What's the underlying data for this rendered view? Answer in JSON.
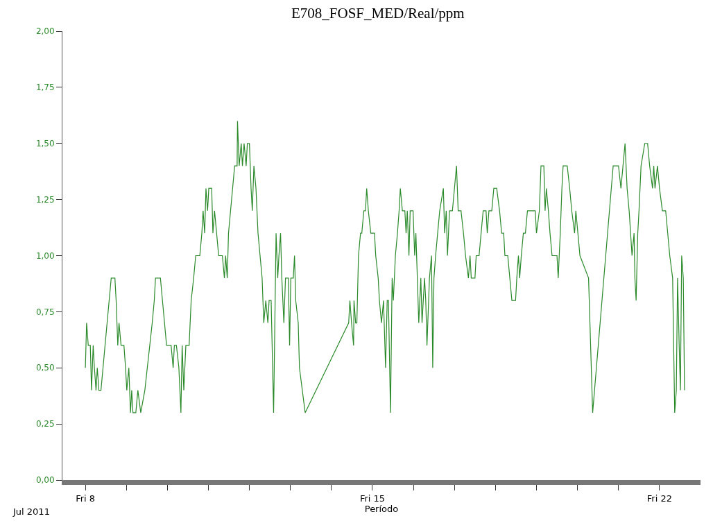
{
  "chart_data": {
    "type": "line",
    "title": "E708_FOSF_MED/Real/ppm",
    "xlabel": "Período",
    "annotations": [
      "Jul 2011"
    ],
    "x": [
      "2011-07-08T00:00",
      "2011-07-08T00:43",
      "2011-07-08T01:41",
      "2011-07-08T02:53",
      "2011-07-08T03:36",
      "2011-07-08T04:34",
      "2011-07-08T05:17",
      "2011-07-08T06:14",
      "2011-07-08T06:58",
      "2011-07-08T07:55",
      "2011-07-08T09:07",
      "2011-07-08T10:19",
      "2011-07-08T11:31",
      "2011-07-08T12:43",
      "2011-07-08T13:55",
      "2011-07-08T15:07",
      "2011-07-08T17:17",
      "2011-07-08T18:00",
      "2011-07-08T18:58",
      "2011-07-08T19:41",
      "2011-07-08T20:53",
      "2011-07-08T22:34",
      "2011-07-08T23:31",
      "2011-07-09T00:14",
      "2011-07-09T01:26",
      "2011-07-09T02:24",
      "2011-07-09T03:07",
      "2011-07-09T03:50",
      "2011-07-09T05:31",
      "2011-07-09T06:43",
      "2011-07-09T08:24",
      "2011-07-09T10:48",
      "2011-07-09T12:14",
      "2011-07-09T13:41",
      "2011-07-09T15:07",
      "2011-07-09T16:19",
      "2011-07-09T17:02",
      "2011-07-09T19:55",
      "2011-07-09T21:07",
      "2011-07-09T22:19",
      "2011-07-09T23:31",
      "2011-07-10T02:10",
      "2011-07-10T03:22",
      "2011-07-10T04:05",
      "2011-07-10T05:17",
      "2011-07-10T06:43",
      "2011-07-10T07:55",
      "2011-07-10T08:38",
      "2011-07-10T09:36",
      "2011-07-10T10:48",
      "2011-07-10T12:43",
      "2011-07-10T13:55",
      "2011-07-10T15:22",
      "2011-07-10T16:34",
      "2011-07-10T18:58",
      "2011-07-10T20:10",
      "2011-07-10T20:53",
      "2011-07-10T21:50",
      "2011-07-10T22:34",
      "2011-07-10T23:31",
      "2011-07-11T00:14",
      "2011-07-11T01:55",
      "2011-07-11T02:38",
      "2011-07-11T03:36",
      "2011-07-11T04:48",
      "2011-07-11T06:00",
      "2011-07-11T08:10",
      "2011-07-11T09:22",
      "2011-07-11T10:05",
      "2011-07-11T11:02",
      "2011-07-11T11:46",
      "2011-07-11T12:58",
      "2011-07-11T14:10",
      "2011-07-11T15:22",
      "2011-07-11T16:48",
      "2011-07-11T17:02",
      "2011-07-11T18:00",
      "2011-07-11T19:12",
      "2011-07-11T19:55",
      "2011-07-11T20:53",
      "2011-07-11T22:05",
      "2011-07-11T22:48",
      "2011-07-12T00:00",
      "2011-07-12T00:58",
      "2011-07-12T01:41",
      "2011-07-12T02:38",
      "2011-07-12T03:50",
      "2011-07-12T05:02",
      "2011-07-12T06:14",
      "2011-07-12T07:26",
      "2011-07-12T08:24",
      "2011-07-12T09:36",
      "2011-07-12T10:48",
      "2011-07-12T11:31",
      "2011-07-12T12:43",
      "2011-07-12T14:10",
      "2011-07-12T14:53",
      "2011-07-12T15:36",
      "2011-07-12T16:34",
      "2011-07-12T17:17",
      "2011-07-12T18:14",
      "2011-07-12T18:58",
      "2011-07-12T20:10",
      "2011-07-12T21:07",
      "2011-07-12T22:48",
      "2011-07-12T23:31",
      "2011-07-13T00:14",
      "2011-07-13T01:41",
      "2011-07-13T02:24",
      "2011-07-13T03:07",
      "2011-07-13T04:34",
      "2011-07-13T05:17",
      "2011-07-13T08:38",
      "2011-07-14T10:05",
      "2011-07-14T10:48",
      "2011-07-14T11:46",
      "2011-07-14T12:58",
      "2011-07-14T13:12",
      "2011-07-14T14:10",
      "2011-07-14T14:53",
      "2011-07-14T15:50",
      "2011-07-14T17:02",
      "2011-07-14T17:46",
      "2011-07-14T18:58",
      "2011-07-14T19:55",
      "2011-07-14T20:38",
      "2011-07-14T21:36",
      "2011-07-14T23:02",
      "2011-07-15T01:12",
      "2011-07-15T01:55",
      "2011-07-15T03:22",
      "2011-07-15T04:05",
      "2011-07-15T05:17",
      "2011-07-15T06:29",
      "2011-07-15T07:41",
      "2011-07-15T08:38",
      "2011-07-15T09:22",
      "2011-07-15T10:34",
      "2011-07-15T11:31",
      "2011-07-15T12:14",
      "2011-07-15T13:26",
      "2011-07-15T14:38",
      "2011-07-15T15:36",
      "2011-07-15T16:19",
      "2011-07-15T17:31",
      "2011-07-15T18:58",
      "2011-07-15T19:41",
      "2011-07-15T20:24",
      "2011-07-15T21:22",
      "2011-07-15T22:05",
      "2011-07-15T23:46",
      "2011-07-16T00:43",
      "2011-07-16T01:26",
      "2011-07-16T03:07",
      "2011-07-16T04:19",
      "2011-07-16T05:02",
      "2011-07-16T06:29",
      "2011-07-16T07:12",
      "2011-07-16T07:55",
      "2011-07-16T09:22",
      "2011-07-16T10:34",
      "2011-07-16T11:17",
      "2011-07-16T12:00",
      "2011-07-16T12:58",
      "2011-07-16T14:10",
      "2011-07-16T15:22",
      "2011-07-16T17:31",
      "2011-07-16T18:14",
      "2011-07-16T19:12",
      "2011-07-16T19:55",
      "2011-07-16T21:07",
      "2011-07-16T22:48",
      "2011-07-17T00:00",
      "2011-07-17T01:12",
      "2011-07-17T02:10",
      "2011-07-17T03:50",
      "2011-07-17T05:17",
      "2011-07-17T06:29",
      "2011-07-17T08:10",
      "2011-07-17T09:07",
      "2011-07-17T09:50",
      "2011-07-17T12:00",
      "2011-07-17T12:43",
      "2011-07-17T14:24",
      "2011-07-17T15:36",
      "2011-07-17T16:48",
      "2011-07-17T18:29",
      "2011-07-17T19:12",
      "2011-07-17T20:10",
      "2011-07-17T21:50",
      "2011-07-17T23:02",
      "2011-07-18T00:43",
      "2011-07-18T02:24",
      "2011-07-18T03:36",
      "2011-07-18T04:48",
      "2011-07-18T05:31",
      "2011-07-18T07:12",
      "2011-07-18T08:24",
      "2011-07-18T09:36",
      "2011-07-18T11:46",
      "2011-07-18T12:29",
      "2011-07-18T13:26",
      "2011-07-18T14:10",
      "2011-07-18T15:07",
      "2011-07-18T16:19",
      "2011-07-18T17:31",
      "2011-07-18T18:43",
      "2011-07-18T22:19",
      "2011-07-18T23:17",
      "2011-07-19T00:00",
      "2011-07-19T01:41",
      "2011-07-19T02:38",
      "2011-07-19T04:19",
      "2011-07-19T05:02",
      "2011-07-19T05:46",
      "2011-07-19T06:58",
      "2011-07-19T07:55",
      "2011-07-19T09:07",
      "2011-07-19T12:00",
      "2011-07-19T12:43",
      "2011-07-19T13:55",
      "2011-07-19T14:53",
      "2011-07-19T15:36",
      "2011-07-19T18:00",
      "2011-07-19T19:26",
      "2011-07-19T20:38",
      "2011-07-19T22:19",
      "2011-07-19T23:02",
      "2011-07-20T00:14",
      "2011-07-20T01:26",
      "2011-07-20T06:29",
      "2011-07-20T08:53",
      "2011-07-20T20:53",
      "2011-07-21T00:00",
      "2011-07-21T01:26",
      "2011-07-21T02:38",
      "2011-07-21T03:50",
      "2011-07-21T05:02",
      "2011-07-21T06:14",
      "2011-07-21T07:55",
      "2011-07-21T09:07",
      "2011-07-21T09:36",
      "2011-07-21T10:19",
      "2011-07-21T11:17",
      "2011-07-21T12:00",
      "2011-07-21T13:12",
      "2011-07-21T15:22",
      "2011-07-21T17:02",
      "2011-07-21T18:14",
      "2011-07-21T19:55",
      "2011-07-21T20:38",
      "2011-07-21T21:22",
      "2011-07-21T22:48",
      "2011-07-22T00:00",
      "2011-07-22T01:41",
      "2011-07-22T03:36",
      "2011-07-22T06:00",
      "2011-07-22T07:41",
      "2011-07-22T08:53",
      "2011-07-22T09:50",
      "2011-07-22T10:34",
      "2011-07-22T11:31",
      "2011-07-22T12:14",
      "2011-07-22T12:58",
      "2011-07-22T13:55",
      "2011-07-22T14:38"
    ],
    "series": [
      {
        "color": "#2a8a2a",
        "values": [
          0.5,
          0.7,
          0.6,
          0.6,
          0.4,
          0.6,
          0.5,
          0.4,
          0.5,
          0.4,
          0.4,
          0.5,
          0.6,
          0.7,
          0.8,
          0.9,
          0.9,
          0.8,
          0.6,
          0.7,
          0.6,
          0.6,
          0.5,
          0.4,
          0.5,
          0.3,
          0.4,
          0.3,
          0.3,
          0.4,
          0.3,
          0.4,
          0.5,
          0.6,
          0.7,
          0.8,
          0.9,
          0.9,
          0.8,
          0.7,
          0.6,
          0.6,
          0.5,
          0.6,
          0.6,
          0.5,
          0.3,
          0.6,
          0.4,
          0.6,
          0.6,
          0.8,
          0.9,
          1.0,
          1.0,
          1.1,
          1.2,
          1.1,
          1.3,
          1.2,
          1.3,
          1.3,
          1.1,
          1.2,
          1.1,
          1.0,
          1.0,
          0.9,
          1.0,
          0.9,
          1.1,
          1.2,
          1.3,
          1.4,
          1.4,
          1.6,
          1.4,
          1.5,
          1.4,
          1.5,
          1.4,
          1.5,
          1.5,
          1.3,
          1.2,
          1.4,
          1.3,
          1.1,
          1.0,
          0.9,
          0.7,
          0.8,
          0.7,
          0.8,
          0.8,
          0.3,
          0.7,
          1.1,
          0.9,
          1.0,
          1.1,
          0.9,
          0.7,
          0.9,
          0.9,
          0.6,
          0.9,
          0.9,
          1.0,
          0.8,
          0.7,
          0.5,
          0.3,
          0.7,
          0.8,
          0.7,
          0.6,
          0.8,
          0.7,
          0.7,
          1.0,
          1.1,
          1.1,
          1.2,
          1.2,
          1.3,
          1.2,
          1.1,
          1.1,
          1.0,
          0.9,
          0.8,
          0.7,
          0.8,
          0.5,
          0.8,
          0.8,
          0.3,
          0.9,
          0.8,
          1.0,
          1.1,
          1.2,
          1.3,
          1.2,
          1.2,
          1.1,
          1.2,
          1.0,
          1.2,
          1.2,
          1.0,
          1.1,
          0.7,
          0.9,
          0.7,
          0.9,
          0.8,
          0.6,
          0.9,
          1.0,
          0.5,
          0.9,
          1.0,
          1.1,
          1.2,
          1.3,
          1.1,
          1.2,
          1.0,
          1.2,
          1.2,
          1.3,
          1.4,
          1.2,
          1.2,
          1.1,
          1.0,
          0.9,
          1.0,
          0.9,
          0.9,
          1.0,
          1.0,
          1.1,
          1.2,
          1.2,
          1.1,
          1.2,
          1.2,
          1.3,
          1.3,
          1.2,
          1.1,
          1.1,
          1.0,
          1.0,
          0.9,
          0.8,
          0.8,
          0.9,
          1.0,
          0.9,
          1.0,
          1.1,
          1.1,
          1.2,
          1.2,
          1.2,
          1.1,
          1.2,
          1.4,
          1.4,
          1.2,
          1.3,
          1.2,
          1.1,
          1.0,
          1.0,
          0.9,
          1.1,
          1.3,
          1.4,
          1.4,
          1.3,
          1.2,
          1.1,
          1.2,
          1.1,
          1.0,
          0.9,
          0.3,
          1.4,
          1.4,
          1.3,
          1.4,
          1.5,
          1.3,
          1.2,
          1.0,
          1.1,
          0.9,
          0.8,
          1.1,
          1.2,
          1.4,
          1.5,
          1.5,
          1.4,
          1.3,
          1.4,
          1.3,
          1.4,
          1.3,
          1.2,
          1.2,
          1.0,
          0.9,
          0.3,
          0.4,
          0.9,
          0.6,
          0.4,
          1.0,
          0.9,
          0.4
        ]
      }
    ],
    "xlim": [
      "2011-07-07T10:34",
      "2011-07-23T00:00"
    ],
    "xticks": [
      {
        "value": "2011-07-08",
        "label": "Fri 8"
      },
      {
        "value": "2011-07-09",
        "label": null
      },
      {
        "value": "2011-07-10",
        "label": null
      },
      {
        "value": "2011-07-11",
        "label": null
      },
      {
        "value": "2011-07-12",
        "label": null
      },
      {
        "value": "2011-07-13",
        "label": null
      },
      {
        "value": "2011-07-14",
        "label": null
      },
      {
        "value": "2011-07-15",
        "label": "Fri 15"
      },
      {
        "value": "2011-07-16",
        "label": null
      },
      {
        "value": "2011-07-17",
        "label": null
      },
      {
        "value": "2011-07-18",
        "label": null
      },
      {
        "value": "2011-07-19",
        "label": null
      },
      {
        "value": "2011-07-20",
        "label": null
      },
      {
        "value": "2011-07-21",
        "label": null
      },
      {
        "value": "2011-07-22",
        "label": "Fri 22"
      }
    ],
    "ylim": [
      0,
      2
    ],
    "yticks": [
      {
        "value": 0,
        "label": "0,00"
      },
      {
        "value": 0.25,
        "label": "0,25"
      },
      {
        "value": 0.5,
        "label": "0,50"
      },
      {
        "value": 0.75,
        "label": "0,75"
      },
      {
        "value": 1.0,
        "label": "1,00"
      },
      {
        "value": 1.25,
        "label": "1,25"
      },
      {
        "value": 1.5,
        "label": "1,50"
      },
      {
        "value": 1.75,
        "label": "1,75"
      },
      {
        "value": 2.0,
        "label": "2,00"
      }
    ],
    "marker": "none",
    "line_style": "solid"
  }
}
